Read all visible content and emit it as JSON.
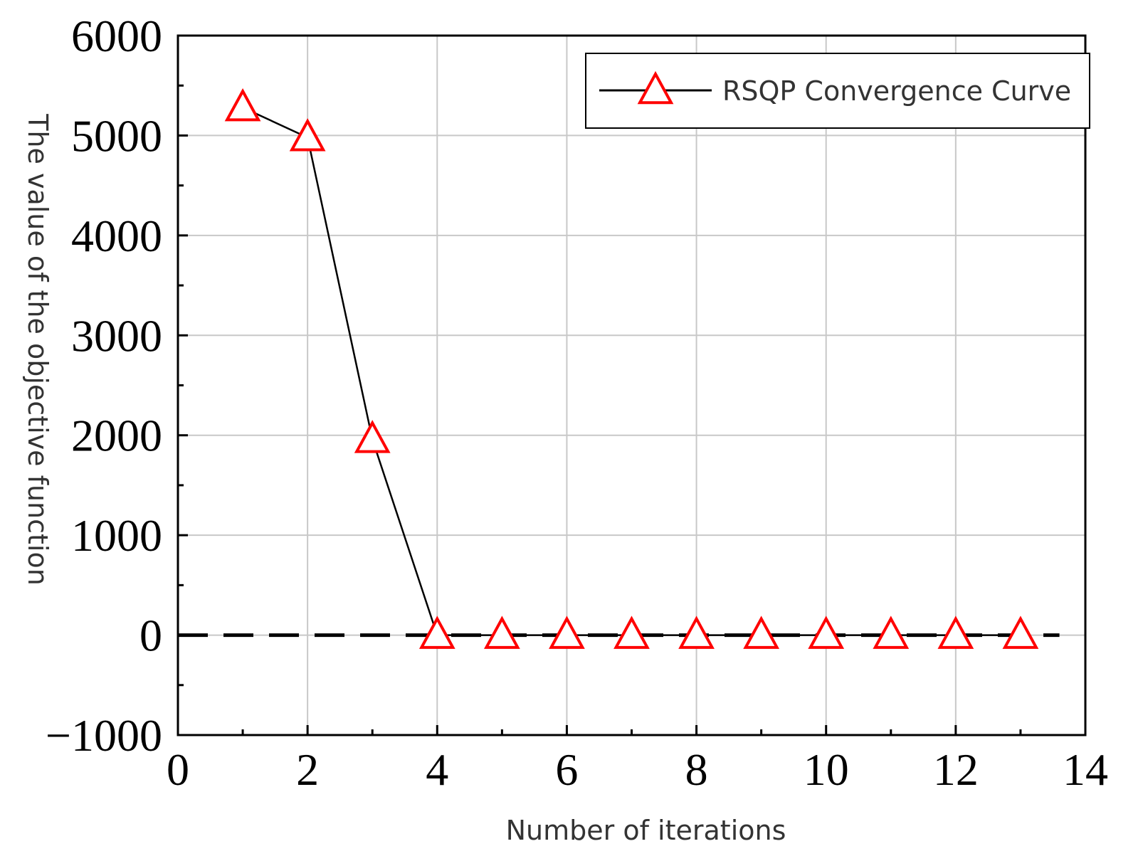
{
  "chart_data": {
    "type": "line",
    "title": "",
    "xlabel": "Number of iterations",
    "ylabel": "The value of the objective function",
    "xlim": [
      0,
      14
    ],
    "ylim": [
      -1000,
      6000
    ],
    "xticks": [
      "0",
      "2",
      "4",
      "6",
      "8",
      "10",
      "12",
      "14"
    ],
    "yticks": [
      "−1000",
      "0",
      "1000",
      "2000",
      "3000",
      "4000",
      "5000",
      "6000"
    ],
    "grid": true,
    "legend_position": "top-right",
    "reference_line": {
      "y": 0,
      "style": "dashed"
    },
    "series": [
      {
        "name": "RSQP Convergence Curve",
        "marker": "triangle",
        "color": "#ff0000",
        "line_color": "#000000",
        "x": [
          1,
          2,
          3,
          4,
          5,
          6,
          7,
          8,
          9,
          10,
          11,
          12,
          13
        ],
        "y": [
          5280,
          4980,
          1960,
          0,
          0,
          0,
          0,
          0,
          0,
          0,
          0,
          0,
          0
        ]
      }
    ]
  }
}
